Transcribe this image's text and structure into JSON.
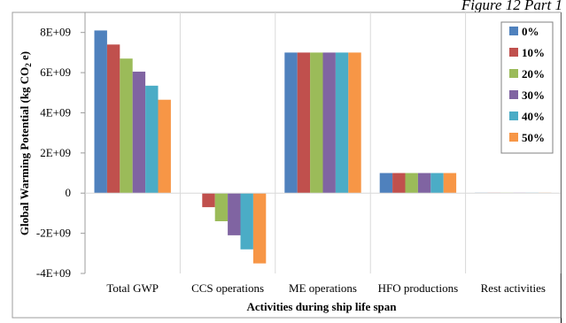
{
  "header": {
    "caption": "Figure 12 Part 1"
  },
  "chart_data": {
    "type": "bar",
    "categories": [
      "Total GWP",
      "CCS operations",
      "ME operations",
      "HFO productions",
      "Rest activities"
    ],
    "series": [
      {
        "name": "0%",
        "color": "#4f81bd",
        "values": [
          8100000000.0,
          0,
          7000000000.0,
          1000000000.0,
          20000000.0
        ]
      },
      {
        "name": "10%",
        "color": "#c0504d",
        "values": [
          7400000000.0,
          -700000000.0,
          7000000000.0,
          1000000000.0,
          20000000.0
        ]
      },
      {
        "name": "20%",
        "color": "#9bbb59",
        "values": [
          6700000000.0,
          -1400000000.0,
          7000000000.0,
          1000000000.0,
          20000000.0
        ]
      },
      {
        "name": "30%",
        "color": "#8064a2",
        "values": [
          6050000000.0,
          -2100000000.0,
          7000000000.0,
          1000000000.0,
          20000000.0
        ]
      },
      {
        "name": "40%",
        "color": "#4bacc6",
        "values": [
          5350000000.0,
          -2800000000.0,
          7000000000.0,
          1000000000.0,
          20000000.0
        ]
      },
      {
        "name": "50%",
        "color": "#f79646",
        "values": [
          4650000000.0,
          -3500000000.0,
          7000000000.0,
          1000000000.0,
          20000000.0
        ]
      }
    ],
    "ylim": [
      -4000000000.0,
      9000000000.0
    ],
    "yticks": [
      -4000000000.0,
      -2000000000.0,
      0,
      2000000000.0,
      4000000000.0,
      6000000000.0,
      8000000000.0
    ],
    "ytick_labels": [
      "-4E+09",
      "-2E+09",
      "0",
      "2E+09",
      "4E+09",
      "6E+09",
      "8E+09"
    ],
    "xlabel": "Activities during ship life span",
    "ylabel": "Global Warming Potential (kg CO",
    "ylabel_sub": "2",
    "ylabel_end": " e)",
    "legend_position": "top-right",
    "grid": "vertical-category-separators"
  }
}
